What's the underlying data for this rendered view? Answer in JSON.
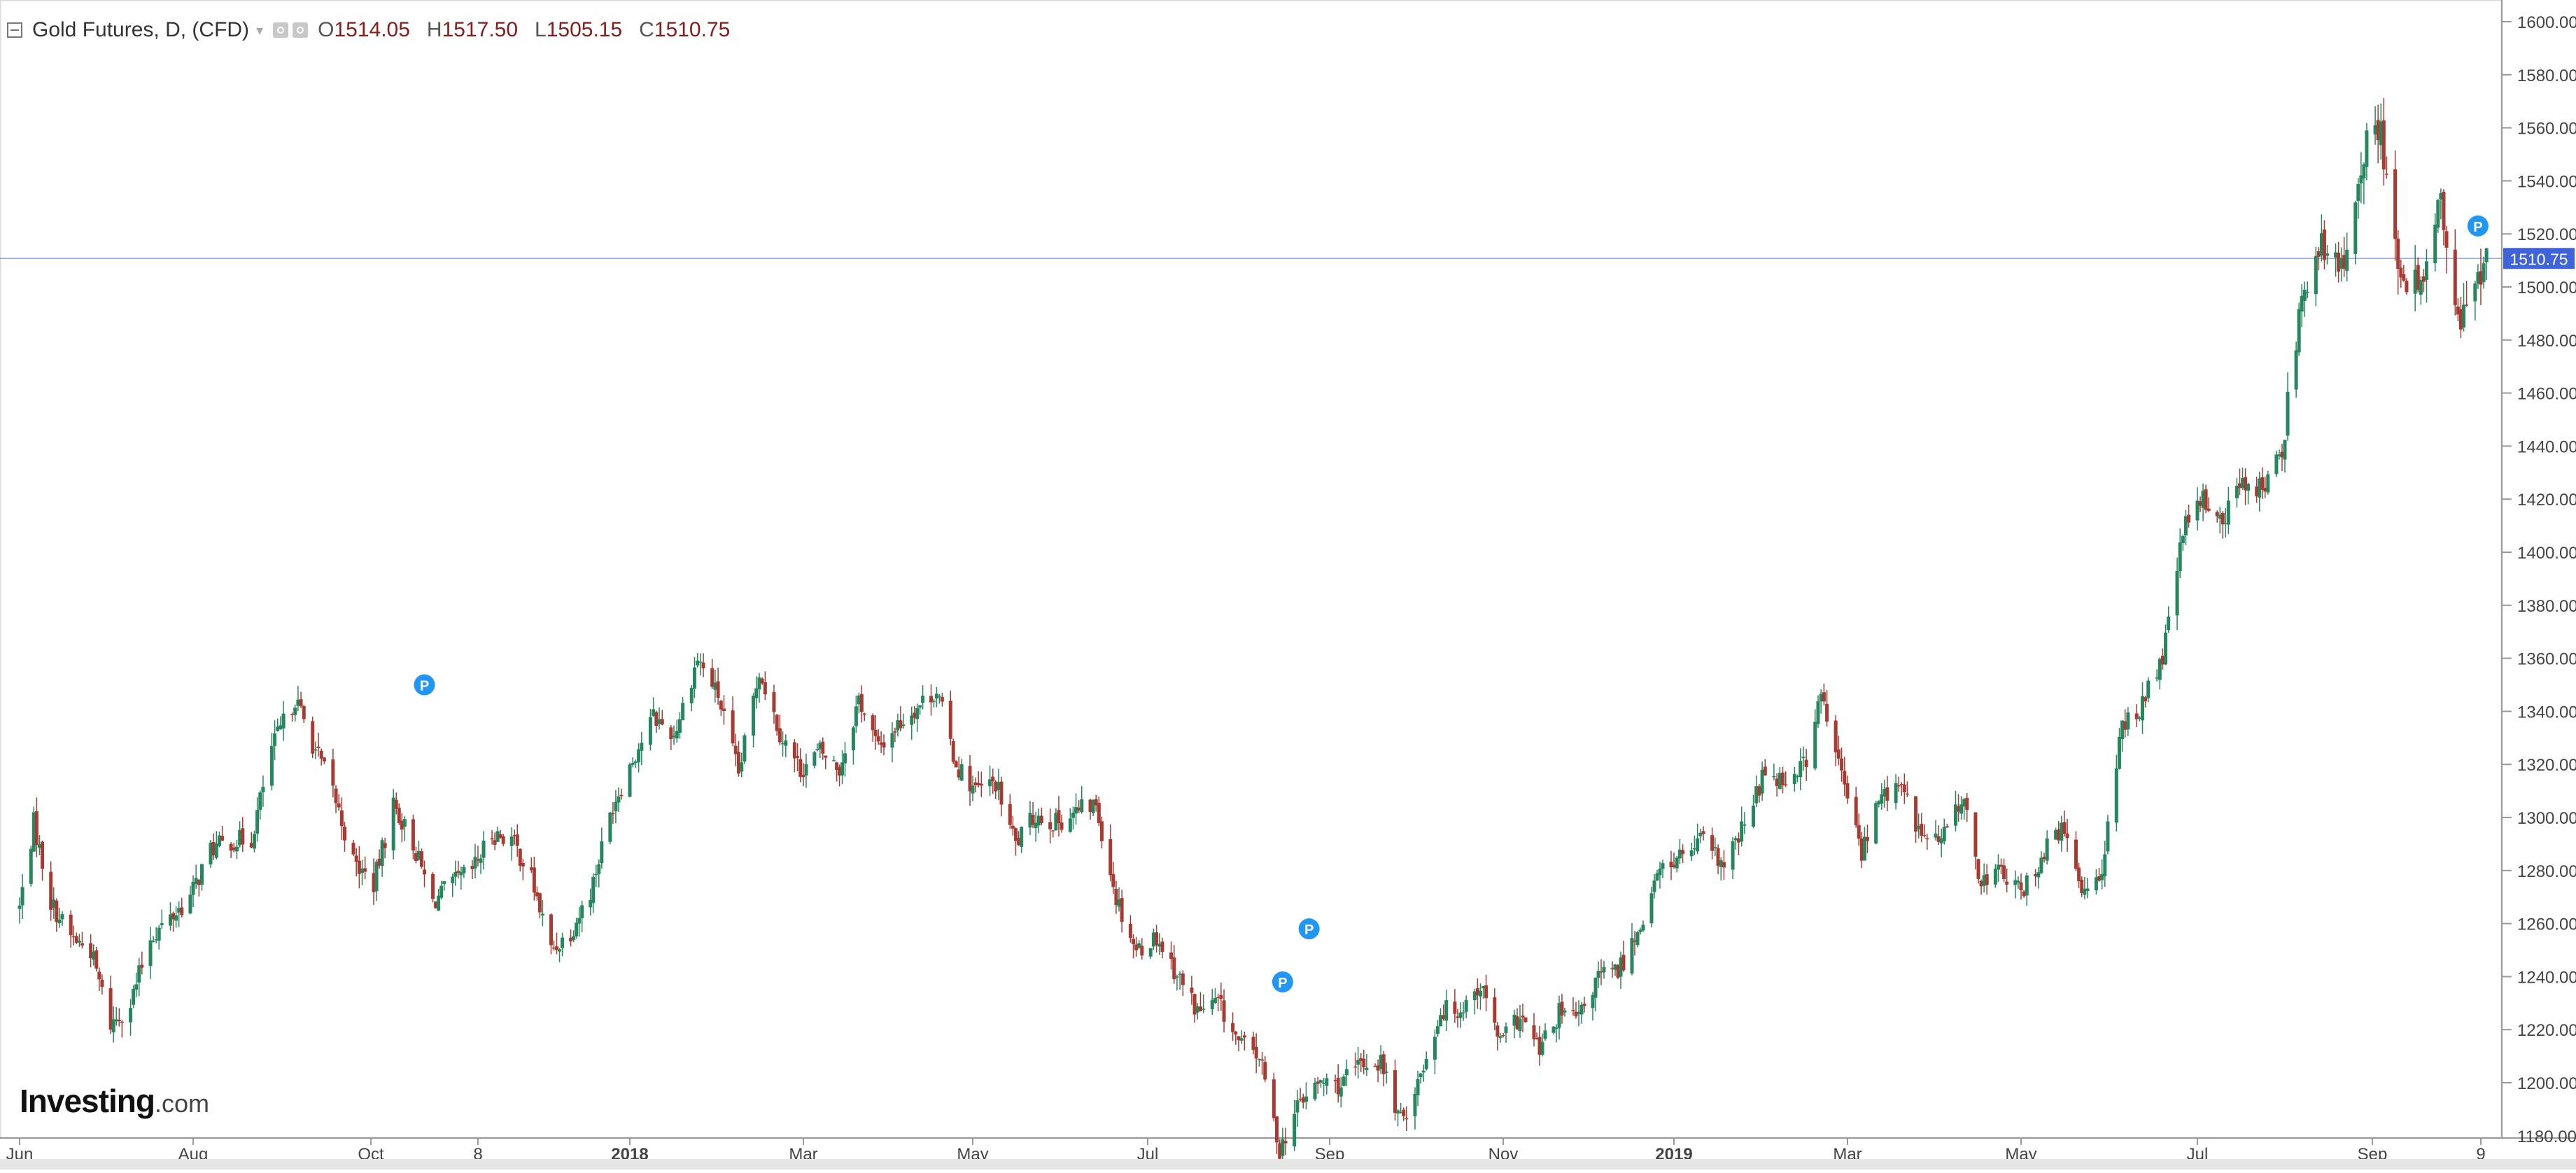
{
  "legend": {
    "symbol": "Gold Futures, D, (CFD)",
    "open_label": "O",
    "open": "1514.05",
    "high_label": "H",
    "high": "1517.50",
    "low_label": "L",
    "low": "1505.15",
    "close_label": "C",
    "close": "1510.75"
  },
  "logo": {
    "name": "Investing",
    "domain": ".com"
  },
  "colors": {
    "up": "#26875f",
    "down": "#a83a32",
    "price_line": "#3f63d9",
    "marker": "#2196f3"
  },
  "chart_data": {
    "type": "candlestick",
    "title": "Gold Futures, D, (CFD)",
    "xlabel": "",
    "ylabel": "",
    "ylim": [
      1180,
      1610
    ],
    "y_ticks": [
      "1200.00",
      "1220.00",
      "1240.00",
      "1260.00",
      "1280.00",
      "1300.00",
      "1320.00",
      "1340.00",
      "1360.00",
      "1380.00",
      "1400.00",
      "1420.00",
      "1440.00",
      "1460.00",
      "1480.00",
      "1500.00",
      "1520.00",
      "1540.00",
      "1560.00",
      "1580.00",
      "1600.00"
    ],
    "x_ticks": [
      {
        "label": "Jun",
        "date": "2017-06-01",
        "bold": false
      },
      {
        "label": "Aug",
        "date": "2017-08-01",
        "bold": false
      },
      {
        "label": "Oct",
        "date": "2017-10-01",
        "bold": false
      },
      {
        "label": "8",
        "date": "2017-11-08",
        "bold": false
      },
      {
        "label": "2018",
        "date": "2018-01-01",
        "bold": true
      },
      {
        "label": "Mar",
        "date": "2018-03-01",
        "bold": false
      },
      {
        "label": "May",
        "date": "2018-05-01",
        "bold": false
      },
      {
        "label": "Jul",
        "date": "2018-07-01",
        "bold": false
      },
      {
        "label": "Sep",
        "date": "2018-09-01",
        "bold": false
      },
      {
        "label": "Nov",
        "date": "2018-11-01",
        "bold": false
      },
      {
        "label": "2019",
        "date": "2019-01-01",
        "bold": true
      },
      {
        "label": "Mar",
        "date": "2019-03-01",
        "bold": false
      },
      {
        "label": "May",
        "date": "2019-05-01",
        "bold": false
      },
      {
        "label": "Jul",
        "date": "2019-07-01",
        "bold": false
      },
      {
        "label": "Sep",
        "date": "2019-09-01",
        "bold": false
      },
      {
        "label": "9",
        "date": "2019-10-09",
        "bold": false
      }
    ],
    "x_range": [
      "2017-05-29",
      "2019-10-14"
    ],
    "current_price": {
      "value": 1510.75,
      "label": "1510.75"
    },
    "markers": [
      {
        "label": "P",
        "date": "2017-10-20",
        "price": 1350
      },
      {
        "label": "P",
        "date": "2018-08-16",
        "price": 1238
      },
      {
        "label": "P",
        "date": "2018-08-25",
        "price": 1258
      },
      {
        "label": "P",
        "date": "2019-10-08",
        "price": 1523
      }
    ],
    "close_path": [
      [
        "2017-06-01",
        1266
      ],
      [
        "2017-06-06",
        1298
      ],
      [
        "2017-06-12",
        1268
      ],
      [
        "2017-06-19",
        1255
      ],
      [
        "2017-06-26",
        1250
      ],
      [
        "2017-07-03",
        1222
      ],
      [
        "2017-07-10",
        1230
      ],
      [
        "2017-07-17",
        1255
      ],
      [
        "2017-07-24",
        1262
      ],
      [
        "2017-07-31",
        1270
      ],
      [
        "2017-08-07",
        1288
      ],
      [
        "2017-08-14",
        1291
      ],
      [
        "2017-08-21",
        1292
      ],
      [
        "2017-08-28",
        1326
      ],
      [
        "2017-09-05",
        1345
      ],
      [
        "2017-09-11",
        1328
      ],
      [
        "2017-09-18",
        1310
      ],
      [
        "2017-09-25",
        1283
      ],
      [
        "2017-10-02",
        1275
      ],
      [
        "2017-10-09",
        1305
      ],
      [
        "2017-10-16",
        1290
      ],
      [
        "2017-10-23",
        1268
      ],
      [
        "2017-10-30",
        1275
      ],
      [
        "2017-11-06",
        1280
      ],
      [
        "2017-11-13",
        1294
      ],
      [
        "2017-11-20",
        1292
      ],
      [
        "2017-11-27",
        1277
      ],
      [
        "2017-12-04",
        1250
      ],
      [
        "2017-12-11",
        1257
      ],
      [
        "2017-12-18",
        1272
      ],
      [
        "2017-12-26",
        1305
      ],
      [
        "2018-01-02",
        1322
      ],
      [
        "2018-01-09",
        1338
      ],
      [
        "2018-01-16",
        1331
      ],
      [
        "2018-01-24",
        1360
      ],
      [
        "2018-01-31",
        1346
      ],
      [
        "2018-02-07",
        1316
      ],
      [
        "2018-02-14",
        1356
      ],
      [
        "2018-02-21",
        1332
      ],
      [
        "2018-02-28",
        1318
      ],
      [
        "2018-03-07",
        1325
      ],
      [
        "2018-03-14",
        1318
      ],
      [
        "2018-03-21",
        1345
      ],
      [
        "2018-03-28",
        1326
      ],
      [
        "2018-04-04",
        1335
      ],
      [
        "2018-04-11",
        1342
      ],
      [
        "2018-04-18",
        1348
      ],
      [
        "2018-04-25",
        1320
      ],
      [
        "2018-05-02",
        1310
      ],
      [
        "2018-05-09",
        1313
      ],
      [
        "2018-05-16",
        1290
      ],
      [
        "2018-05-23",
        1301
      ],
      [
        "2018-05-30",
        1298
      ],
      [
        "2018-06-06",
        1302
      ],
      [
        "2018-06-13",
        1305
      ],
      [
        "2018-06-20",
        1270
      ],
      [
        "2018-06-27",
        1250
      ],
      [
        "2018-07-04",
        1255
      ],
      [
        "2018-07-11",
        1241
      ],
      [
        "2018-07-18",
        1227
      ],
      [
        "2018-07-25",
        1230
      ],
      [
        "2018-08-01",
        1215
      ],
      [
        "2018-08-08",
        1210
      ],
      [
        "2018-08-15",
        1175
      ],
      [
        "2018-08-22",
        1193
      ],
      [
        "2018-08-29",
        1200
      ],
      [
        "2018-09-05",
        1199
      ],
      [
        "2018-09-12",
        1207
      ],
      [
        "2018-09-19",
        1208
      ],
      [
        "2018-09-26",
        1185
      ],
      [
        "2018-10-03",
        1203
      ],
      [
        "2018-10-10",
        1227
      ],
      [
        "2018-10-17",
        1228
      ],
      [
        "2018-10-24",
        1237
      ],
      [
        "2018-10-31",
        1215
      ],
      [
        "2018-11-07",
        1225
      ],
      [
        "2018-11-14",
        1212
      ],
      [
        "2018-11-21",
        1226
      ],
      [
        "2018-11-28",
        1224
      ],
      [
        "2018-12-05",
        1240
      ],
      [
        "2018-12-12",
        1242
      ],
      [
        "2018-12-19",
        1257
      ],
      [
        "2018-12-27",
        1280
      ],
      [
        "2019-01-04",
        1286
      ],
      [
        "2019-01-11",
        1291
      ],
      [
        "2019-01-18",
        1281
      ],
      [
        "2019-01-25",
        1297
      ],
      [
        "2019-02-01",
        1318
      ],
      [
        "2019-02-08",
        1314
      ],
      [
        "2019-02-15",
        1322
      ],
      [
        "2019-02-20",
        1346
      ],
      [
        "2019-02-27",
        1316
      ],
      [
        "2019-03-06",
        1287
      ],
      [
        "2019-03-13",
        1309
      ],
      [
        "2019-03-20",
        1311
      ],
      [
        "2019-03-27",
        1293
      ],
      [
        "2019-04-03",
        1291
      ],
      [
        "2019-04-10",
        1308
      ],
      [
        "2019-04-17",
        1276
      ],
      [
        "2019-04-24",
        1280
      ],
      [
        "2019-05-01",
        1271
      ],
      [
        "2019-05-08",
        1285
      ],
      [
        "2019-05-15",
        1296
      ],
      [
        "2019-05-22",
        1273
      ],
      [
        "2019-05-29",
        1281
      ],
      [
        "2019-06-05",
        1334
      ],
      [
        "2019-06-12",
        1343
      ],
      [
        "2019-06-19",
        1360
      ],
      [
        "2019-06-26",
        1408
      ],
      [
        "2019-07-03",
        1420
      ],
      [
        "2019-07-10",
        1412
      ],
      [
        "2019-07-17",
        1427
      ],
      [
        "2019-07-24",
        1424
      ],
      [
        "2019-07-31",
        1437
      ],
      [
        "2019-08-07",
        1500
      ],
      [
        "2019-08-14",
        1514
      ],
      [
        "2019-08-21",
        1505
      ],
      [
        "2019-08-28",
        1549
      ],
      [
        "2019-09-04",
        1560
      ],
      [
        "2019-09-11",
        1498
      ],
      [
        "2019-09-18",
        1503
      ],
      [
        "2019-09-25",
        1531
      ],
      [
        "2019-10-01",
        1484
      ],
      [
        "2019-10-08",
        1505
      ],
      [
        "2019-10-11",
        1510.75
      ]
    ]
  }
}
